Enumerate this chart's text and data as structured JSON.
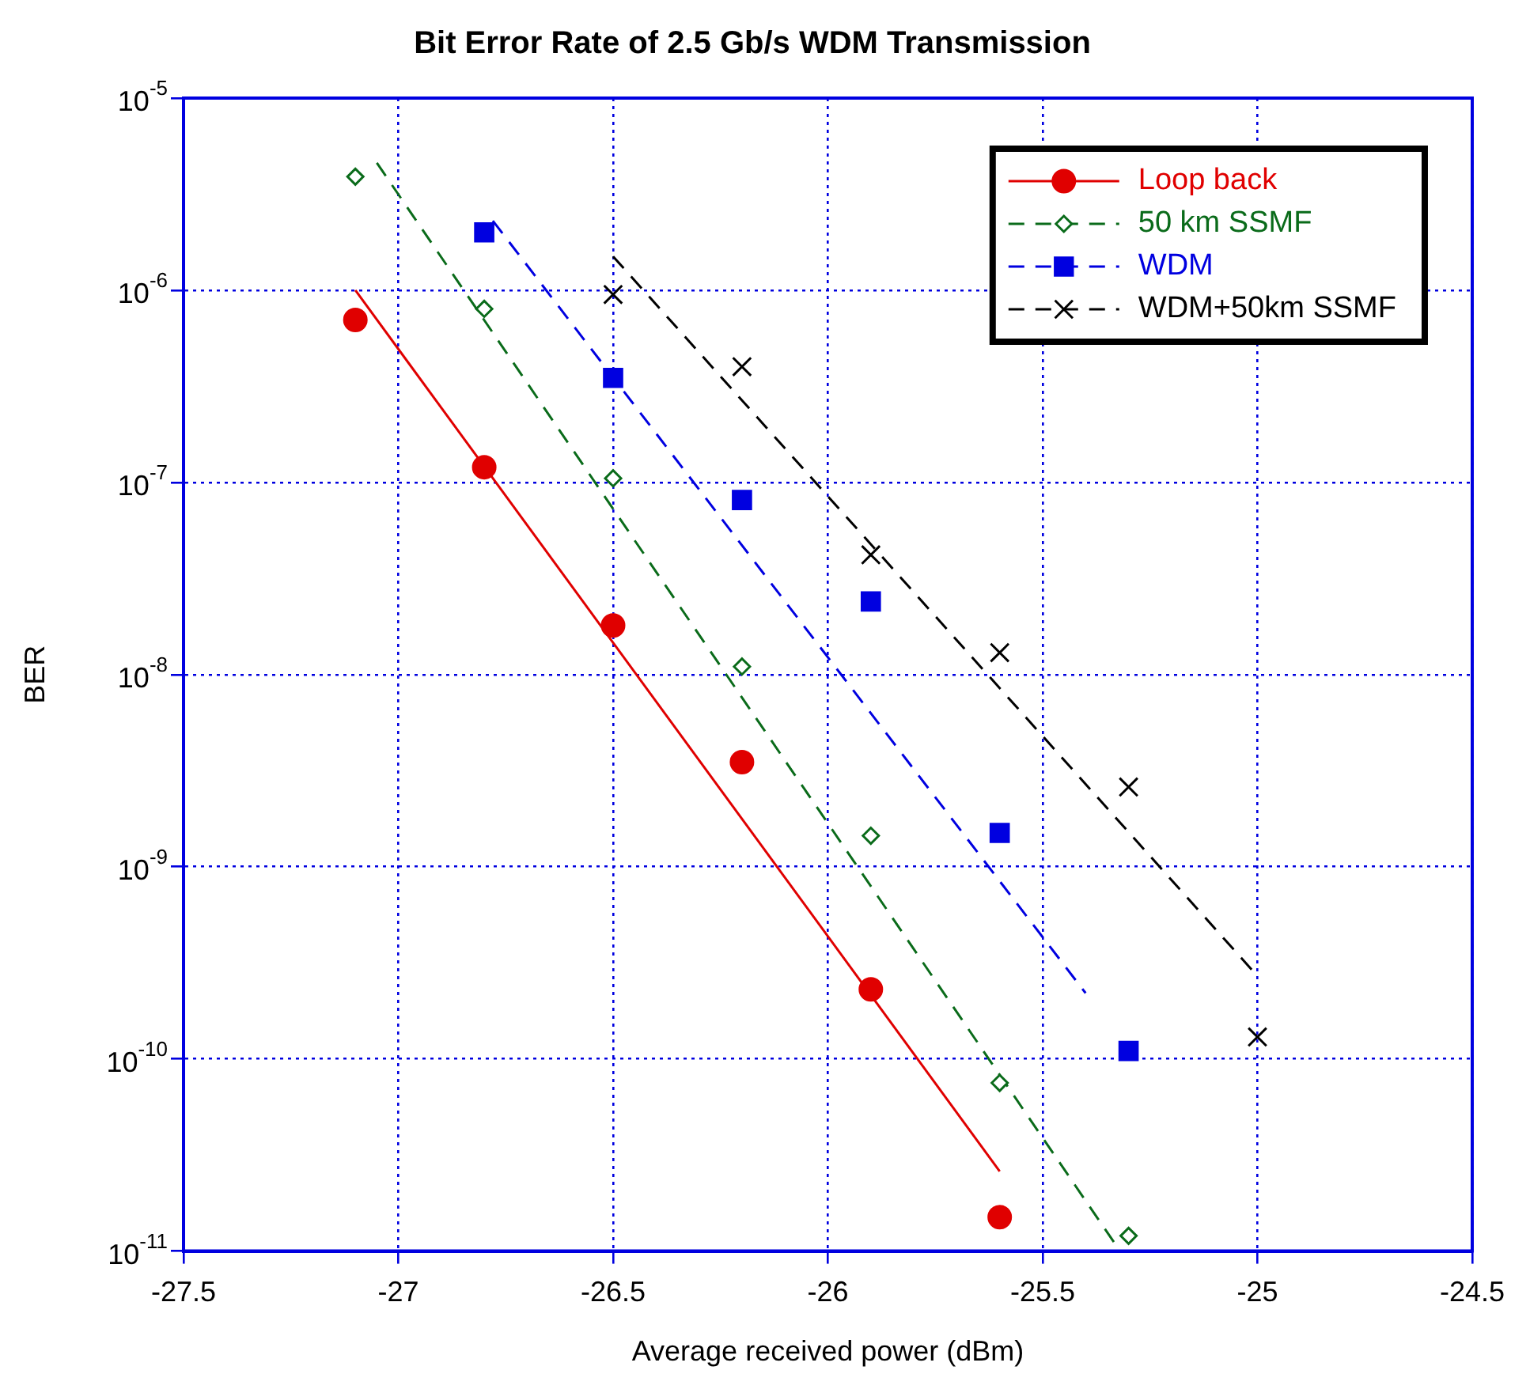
{
  "chart_data": {
    "type": "scatter",
    "title": "Bit Error Rate of 2.5 Gb/s WDM Transmission",
    "xlabel": "Average received power (dBm)",
    "ylabel": "BER",
    "xlim": [
      -27.5,
      -24.5
    ],
    "xticks": [
      -27.5,
      -27,
      -26.5,
      -26,
      -25.5,
      -25,
      -24.5
    ],
    "ylim": [
      1e-11,
      1e-05
    ],
    "yticks": [
      {
        "value": 1e-11,
        "label": "10$^{-11}$"
      },
      {
        "value": 1e-10,
        "label": "10$^{-10}$"
      },
      {
        "value": 1e-09,
        "label": "10$^{-9}$"
      },
      {
        "value": 1e-08,
        "label": "10$^{-8}$"
      },
      {
        "value": 1e-07,
        "label": "10$^{-7}$"
      },
      {
        "value": 1e-06,
        "label": "10$^{-6}$"
      },
      {
        "value": 1e-05,
        "label": "10$^{-5}$"
      }
    ],
    "log": "y",
    "grid": true,
    "legend": "top right",
    "series": [
      {
        "name": "Loop back",
        "color": "#e00000",
        "marker": "circle",
        "x": [
          -27.1,
          -26.8,
          -26.5,
          -26.2,
          -25.9,
          -25.6
        ],
        "values": [
          7e-07,
          1.2e-07,
          1.8e-08,
          3.5e-09,
          2.3e-10,
          1.5e-11
        ]
      },
      {
        "name": "50 km SSMF",
        "color": "#0a6b1a",
        "marker": "diamond",
        "x": [
          -27.1,
          -26.8,
          -26.5,
          -26.2,
          -25.9,
          -25.6,
          -25.3
        ],
        "values": [
          3.9e-06,
          8e-07,
          1.05e-07,
          1.1e-08,
          1.45e-09,
          7.5e-11,
          1.2e-11
        ]
      },
      {
        "name": "WDM",
        "color": "#0000e0",
        "marker": "square",
        "x": [
          -26.8,
          -26.5,
          -26.2,
          -25.9,
          -25.6,
          -25.3
        ],
        "values": [
          2e-06,
          3.5e-07,
          8.1e-08,
          2.4e-08,
          1.5e-09,
          1.1e-10
        ]
      },
      {
        "name": "WDM+50km SSMF",
        "color": "#000000",
        "marker": "cross",
        "x": [
          -26.5,
          -26.2,
          -25.9,
          -25.6,
          -25.3,
          -25.0
        ],
        "values": [
          9.5e-07,
          4e-07,
          4.2e-08,
          1.3e-08,
          2.6e-09,
          1.3e-10
        ]
      },
      {
        "type": "line",
        "color": "#e00000",
        "line_style": "solid",
        "marker": "none",
        "x": [
          -27.1,
          -25.6
        ],
        "values": [
          1e-06,
          2.6e-11
        ]
      },
      {
        "type": "line",
        "color": "#0a6b1a",
        "line_style": "dashed",
        "marker": "none",
        "x": [
          -27.05,
          -25.32
        ],
        "values": [
          4.6e-06,
          1e-11
        ]
      },
      {
        "type": "line",
        "color": "#0000e0",
        "line_style": "dashed",
        "marker": "none",
        "x": [
          -26.78,
          -25.4
        ],
        "values": [
          2.3e-06,
          2.2e-10
        ]
      },
      {
        "type": "line",
        "color": "#000000",
        "line_style": "dashed",
        "marker": "none",
        "x": [
          -26.5,
          -25.0
        ],
        "values": [
          1.5e-06,
          2.7e-10
        ]
      }
    ]
  }
}
